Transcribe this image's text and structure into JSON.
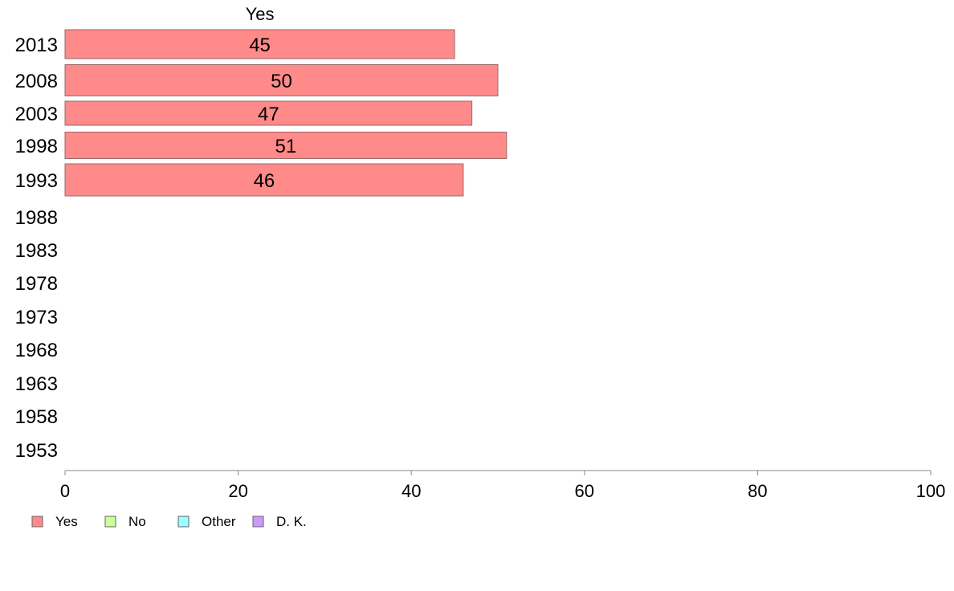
{
  "chart_data": {
    "type": "bar",
    "orientation": "horizontal",
    "stacked": true,
    "series_header": "Yes",
    "categories": [
      "2013",
      "2008",
      "2003",
      "1998",
      "1993",
      "1988",
      "1983",
      "1978",
      "1973",
      "1968",
      "1963",
      "1958",
      "1953"
    ],
    "series": [
      {
        "name": "Yes",
        "color": "#ff8a8a",
        "values": [
          45,
          50,
          47,
          51,
          46,
          null,
          null,
          null,
          null,
          null,
          null,
          null,
          null
        ]
      },
      {
        "name": "No",
        "color": "#ccff99",
        "values": [
          null,
          null,
          null,
          null,
          null,
          null,
          null,
          null,
          null,
          null,
          null,
          null,
          null
        ]
      },
      {
        "name": "Other",
        "color": "#99ffff",
        "values": [
          null,
          null,
          null,
          null,
          null,
          null,
          null,
          null,
          null,
          null,
          null,
          null,
          null
        ]
      },
      {
        "name": "D. K.",
        "color": "#cc99ff",
        "values": [
          null,
          null,
          null,
          null,
          null,
          null,
          null,
          null,
          null,
          null,
          null,
          null,
          null
        ]
      }
    ],
    "xlim": [
      0,
      100
    ],
    "xticks": [
      0,
      20,
      40,
      60,
      80,
      100
    ],
    "grid": false,
    "legend_position": "bottom-left"
  }
}
